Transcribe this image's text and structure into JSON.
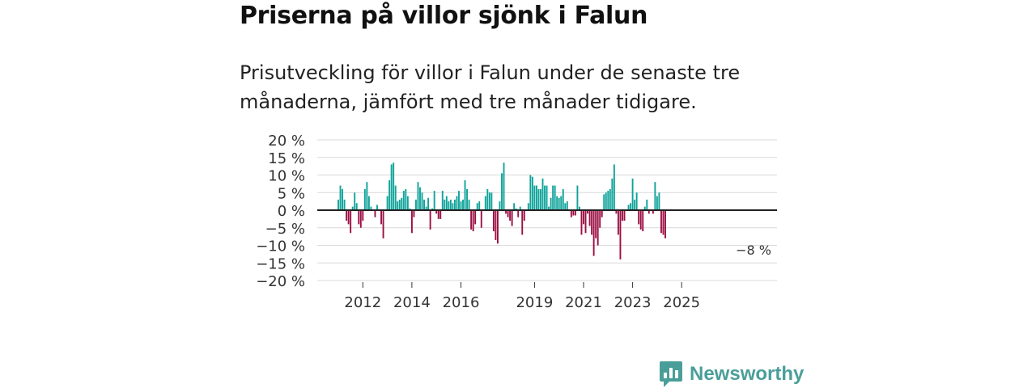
{
  "title": "Priserna på villor sjönk i Falun",
  "subtitle": "Prisutveckling för villor i Falun under de senaste tre månaderna, jämfört med tre månader tidigare.",
  "brand": {
    "name": "Newsworthy"
  },
  "colors": {
    "positive": "#0fa39a",
    "negative": "#9b0f42",
    "grid": "#d9d9d9",
    "zero": "#222222",
    "brand": "#4a9e99"
  },
  "chart_data": {
    "type": "bar",
    "title": "Priserna på villor sjönk i Falun",
    "xlabel": "",
    "ylabel": "",
    "ylim": [
      -20,
      20
    ],
    "yticks": [
      20,
      15,
      10,
      5,
      0,
      -5,
      -10,
      -15,
      -20
    ],
    "ytick_labels": [
      "20 %",
      "15 %",
      "10 %",
      "5 %",
      "0 %",
      "−5 %",
      "−10 %",
      "−15 %",
      "−20 %"
    ],
    "xticks": [
      "2012",
      "2014",
      "2016",
      "2019",
      "2021",
      "2023",
      "2025"
    ],
    "xtick_index": [
      12,
      36,
      60,
      96,
      120,
      144,
      168
    ],
    "last_value_label": "−8 %",
    "first_month": "2011-08",
    "values": [
      3,
      7,
      6,
      3,
      -3,
      -4,
      -6.5,
      1,
      5,
      2,
      -4,
      -5,
      -3,
      6,
      8,
      4,
      1,
      0,
      -2,
      1.5,
      0,
      -4,
      -8,
      0,
      4,
      8.5,
      13,
      13.5,
      7,
      2.5,
      3,
      3.5,
      5.5,
      6,
      4,
      0.5,
      -6.5,
      -2,
      3,
      8,
      6.5,
      5,
      3,
      1,
      3.5,
      -5.5,
      0.5,
      5.5,
      -1,
      -2.5,
      -2.5,
      5.5,
      3,
      4,
      2.5,
      3,
      2,
      3,
      4,
      5.5,
      2.5,
      3,
      8.5,
      6,
      3,
      -5.5,
      -6,
      -4,
      2,
      2.5,
      -5,
      0,
      4,
      6,
      5,
      5,
      -6,
      -8.5,
      -9.5,
      2.5,
      10.5,
      13.5,
      -1,
      -2,
      -3,
      -4.5,
      2,
      0.5,
      -2,
      1,
      -7,
      -3,
      0,
      2,
      10,
      9.5,
      7,
      7,
      6,
      6,
      9,
      7,
      7,
      1,
      3.5,
      7,
      7,
      4,
      3.5,
      4,
      6,
      2,
      2.5,
      0,
      -2,
      -1.5,
      -1.5,
      7,
      1,
      -7,
      -4,
      -6.5,
      -1,
      -4.5,
      -7,
      -13,
      -8,
      -10,
      -5,
      -2,
      4.5,
      5,
      5.5,
      6,
      9,
      13,
      -1,
      -7,
      -14,
      -3,
      -3,
      0,
      1.5,
      2,
      9,
      3,
      5,
      -4,
      -5.5,
      -6,
      1,
      3,
      -1,
      0,
      -1,
      8,
      4,
      5,
      -6.5,
      -7,
      -8
    ]
  }
}
